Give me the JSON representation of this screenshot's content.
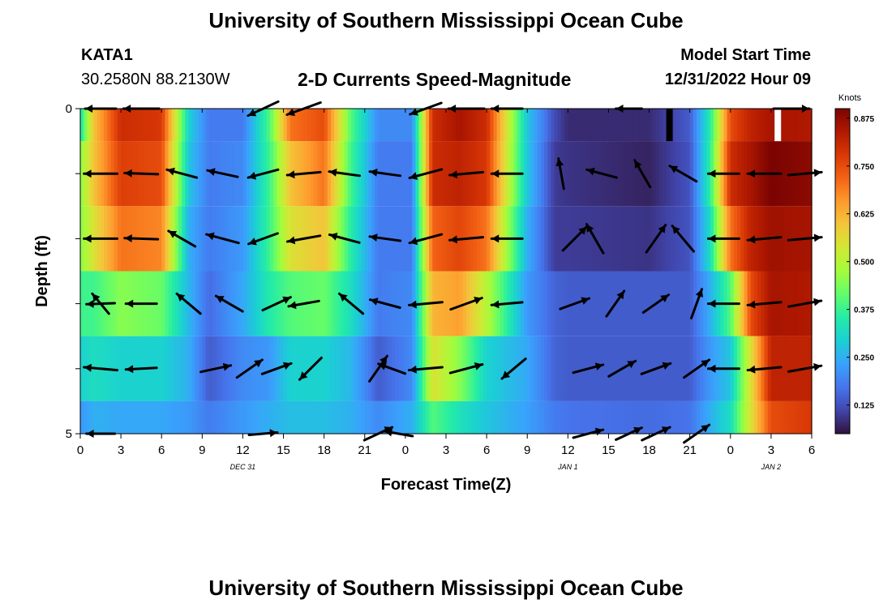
{
  "header": {
    "title": "University of Southern Mississippi Ocean Cube",
    "station_id": "KATA1",
    "station_coords": "30.2580N  88.2130W",
    "chart_subtitle": "2-D Currents Speed-Magnitude",
    "model_start_label": "Model Start Time",
    "model_start_value": "12/31/2022 Hour 09"
  },
  "footer": {
    "title_repeat": "University of Southern Mississippi Ocean Cube"
  },
  "colors": {
    "arrow": "#000000",
    "colormap": [
      "#30123b",
      "#4145ab",
      "#4675ed",
      "#39a2fc",
      "#1bcfd4",
      "#24eca6",
      "#61fc6c",
      "#a4fc3b",
      "#d1e834",
      "#f3c63a",
      "#fe9b2d",
      "#f36315",
      "#d93806",
      "#b11901",
      "#7a0402"
    ]
  },
  "chart_data": {
    "type": "heatmap",
    "title": "2-D Currents Speed-Magnitude",
    "xlabel": "Forecast Time(Z)",
    "ylabel": "Depth (ft)",
    "y_tick_labels": [
      "0",
      "5"
    ],
    "ylim": [
      0,
      5
    ],
    "x_tick_labels": [
      "0",
      "3",
      "6",
      "9",
      "12",
      "15",
      "18",
      "21",
      "0",
      "3",
      "6",
      "9",
      "12",
      "15",
      "18",
      "21",
      "0",
      "3",
      "6"
    ],
    "date_labels": [
      {
        "label": "DEC 31",
        "at_hour": 12
      },
      {
        "label": "JAN 1",
        "at_hour": 36
      },
      {
        "label": "JAN 2",
        "at_hour": 51
      }
    ],
    "x_hours_range": [
      0,
      54
    ],
    "colorbar": {
      "unit_label": "Knots",
      "range": [
        0.05,
        0.9
      ],
      "ticks": [
        "0.125",
        "0.250",
        "0.375",
        "0.500",
        "0.625",
        "0.750",
        "0.875"
      ],
      "tick_values": [
        0.125,
        0.25,
        0.375,
        0.5,
        0.625,
        0.75,
        0.875
      ]
    },
    "depth_levels": [
      0,
      1,
      2,
      3,
      4,
      5
    ],
    "speed_keyframes": [
      [
        0,
        [
          0.33,
          0.45,
          0.45,
          0.38,
          0.3,
          0.22
        ]
      ],
      [
        1,
        [
          0.6,
          0.6,
          0.55,
          0.38,
          0.32,
          0.25
        ]
      ],
      [
        3,
        [
          0.8,
          0.77,
          0.7,
          0.45,
          0.3,
          0.24
        ]
      ],
      [
        6,
        [
          0.78,
          0.75,
          0.68,
          0.42,
          0.3,
          0.24
        ]
      ],
      [
        8,
        [
          0.3,
          0.28,
          0.25,
          0.26,
          0.25,
          0.22
        ]
      ],
      [
        9.5,
        [
          0.18,
          0.18,
          0.18,
          0.16,
          0.14,
          0.18
        ]
      ],
      [
        12,
        [
          0.18,
          0.2,
          0.22,
          0.24,
          0.2,
          0.22
        ]
      ],
      [
        14,
        [
          0.4,
          0.38,
          0.38,
          0.35,
          0.22,
          0.25
        ]
      ],
      [
        15.5,
        [
          0.7,
          0.6,
          0.55,
          0.4,
          0.3,
          0.27
        ]
      ],
      [
        18,
        [
          0.75,
          0.7,
          0.6,
          0.42,
          0.3,
          0.27
        ]
      ],
      [
        20,
        [
          0.4,
          0.38,
          0.35,
          0.32,
          0.26,
          0.25
        ]
      ],
      [
        22,
        [
          0.2,
          0.18,
          0.18,
          0.18,
          0.14,
          0.2
        ]
      ],
      [
        24.5,
        [
          0.2,
          0.18,
          0.18,
          0.2,
          0.2,
          0.25
        ]
      ],
      [
        26,
        [
          0.8,
          0.8,
          0.72,
          0.62,
          0.55,
          0.4
        ]
      ],
      [
        28,
        [
          0.85,
          0.82,
          0.76,
          0.65,
          0.45,
          0.33
        ]
      ],
      [
        30,
        [
          0.8,
          0.78,
          0.7,
          0.5,
          0.3,
          0.28
        ]
      ],
      [
        33,
        [
          0.28,
          0.28,
          0.25,
          0.22,
          0.24,
          0.23
        ]
      ],
      [
        35,
        [
          0.12,
          0.1,
          0.1,
          0.15,
          0.15,
          0.18
        ]
      ],
      [
        36,
        [
          0.08,
          0.09,
          0.1,
          0.14,
          0.14,
          0.17
        ]
      ],
      [
        42,
        [
          0.08,
          0.07,
          0.09,
          0.14,
          0.14,
          0.16
        ]
      ],
      [
        45,
        [
          0.14,
          0.13,
          0.13,
          0.14,
          0.14,
          0.17
        ]
      ],
      [
        46.5,
        [
          0.35,
          0.36,
          0.32,
          0.25,
          0.22,
          0.25
        ]
      ],
      [
        48,
        [
          0.75,
          0.8,
          0.7,
          0.4,
          0.28,
          0.32
        ]
      ],
      [
        49.5,
        [
          0.82,
          0.85,
          0.82,
          0.75,
          0.55,
          0.55
        ]
      ],
      [
        51,
        [
          0.85,
          0.9,
          0.86,
          0.85,
          0.82,
          0.75
        ]
      ],
      [
        54,
        [
          0.84,
          0.88,
          0.85,
          0.84,
          0.82,
          0.78
        ]
      ]
    ],
    "missing_cells": [
      {
        "hour": 43.5,
        "depth": 0
      },
      {
        "hour": 51.5,
        "depth": 0
      }
    ],
    "vectors": [
      {
        "hour": 1.5,
        "depth": 0,
        "dir": 180,
        "speed": 0.6
      },
      {
        "hour": 4.5,
        "depth": 0,
        "dir": 180,
        "speed": 0.8
      },
      {
        "hour": 13.5,
        "depth": 0,
        "dir": 205,
        "speed": 0.7
      },
      {
        "hour": 16.5,
        "depth": 0,
        "dir": 200,
        "speed": 0.8
      },
      {
        "hour": 25.5,
        "depth": 0,
        "dir": 200,
        "speed": 0.7
      },
      {
        "hour": 28.5,
        "depth": 0,
        "dir": 180,
        "speed": 0.8
      },
      {
        "hour": 31.5,
        "depth": 0,
        "dir": 180,
        "speed": 0.6
      },
      {
        "hour": 40.5,
        "depth": 0,
        "dir": 180,
        "speed": 0.4
      },
      {
        "hour": 52.5,
        "depth": 0,
        "dir": 0,
        "speed": 0.8
      },
      {
        "hour": 1.5,
        "depth": 1,
        "dir": 180,
        "speed": 0.7
      },
      {
        "hour": 4.5,
        "depth": 1,
        "dir": 178,
        "speed": 0.7
      },
      {
        "hour": 7.5,
        "depth": 1,
        "dir": 165,
        "speed": 0.6
      },
      {
        "hour": 10.5,
        "depth": 1,
        "dir": 168,
        "speed": 0.6
      },
      {
        "hour": 13.5,
        "depth": 1,
        "dir": 195,
        "speed": 0.6
      },
      {
        "hour": 16.5,
        "depth": 1,
        "dir": 185,
        "speed": 0.7
      },
      {
        "hour": 19.5,
        "depth": 1,
        "dir": 172,
        "speed": 0.6
      },
      {
        "hour": 22.5,
        "depth": 1,
        "dir": 172,
        "speed": 0.6
      },
      {
        "hour": 25.5,
        "depth": 1,
        "dir": 195,
        "speed": 0.7
      },
      {
        "hour": 28.5,
        "depth": 1,
        "dir": 185,
        "speed": 0.7
      },
      {
        "hour": 31.5,
        "depth": 1,
        "dir": 180,
        "speed": 0.6
      },
      {
        "hour": 35.5,
        "depth": 1,
        "dir": 100,
        "speed": 0.6
      },
      {
        "hour": 38.5,
        "depth": 1,
        "dir": 165,
        "speed": 0.6
      },
      {
        "hour": 41.5,
        "depth": 1,
        "dir": 120,
        "speed": 0.6
      },
      {
        "hour": 44.5,
        "depth": 1,
        "dir": 150,
        "speed": 0.6
      },
      {
        "hour": 47.5,
        "depth": 1,
        "dir": 180,
        "speed": 0.6
      },
      {
        "hour": 50.5,
        "depth": 1,
        "dir": 180,
        "speed": 0.7
      },
      {
        "hour": 53.5,
        "depth": 1,
        "dir": 5,
        "speed": 0.7
      },
      {
        "hour": 1.5,
        "depth": 2,
        "dir": 180,
        "speed": 0.7
      },
      {
        "hour": 4.5,
        "depth": 2,
        "dir": 178,
        "speed": 0.7
      },
      {
        "hour": 7.5,
        "depth": 2,
        "dir": 150,
        "speed": 0.6
      },
      {
        "hour": 10.5,
        "depth": 2,
        "dir": 165,
        "speed": 0.7
      },
      {
        "hour": 13.5,
        "depth": 2,
        "dir": 200,
        "speed": 0.6
      },
      {
        "hour": 16.5,
        "depth": 2,
        "dir": 190,
        "speed": 0.7
      },
      {
        "hour": 19.5,
        "depth": 2,
        "dir": 165,
        "speed": 0.6
      },
      {
        "hour": 22.5,
        "depth": 2,
        "dir": 172,
        "speed": 0.6
      },
      {
        "hour": 25.5,
        "depth": 2,
        "dir": 195,
        "speed": 0.7
      },
      {
        "hour": 28.5,
        "depth": 2,
        "dir": 185,
        "speed": 0.7
      },
      {
        "hour": 31.5,
        "depth": 2,
        "dir": 180,
        "speed": 0.6
      },
      {
        "hour": 36.5,
        "depth": 2,
        "dir": 45,
        "speed": 0.7
      },
      {
        "hour": 38.0,
        "depth": 2,
        "dir": 120,
        "speed": 0.7
      },
      {
        "hour": 42.5,
        "depth": 2,
        "dir": 55,
        "speed": 0.7
      },
      {
        "hour": 44.5,
        "depth": 2,
        "dir": 130,
        "speed": 0.7
      },
      {
        "hour": 47.5,
        "depth": 2,
        "dir": 180,
        "speed": 0.6
      },
      {
        "hour": 50.5,
        "depth": 2,
        "dir": 185,
        "speed": 0.7
      },
      {
        "hour": 53.5,
        "depth": 2,
        "dir": 5,
        "speed": 0.7
      },
      {
        "hour": 1.5,
        "depth": 3,
        "dir": 130,
        "speed": 0.4
      },
      {
        "hour": 1.5,
        "depth": 3,
        "dir": 182,
        "speed": 0.5
      },
      {
        "hour": 4.5,
        "depth": 3,
        "dir": 180,
        "speed": 0.6
      },
      {
        "hour": 8.0,
        "depth": 3,
        "dir": 140,
        "speed": 0.6
      },
      {
        "hour": 11.0,
        "depth": 3,
        "dir": 150,
        "speed": 0.6
      },
      {
        "hour": 14.5,
        "depth": 3,
        "dir": 25,
        "speed": 0.6
      },
      {
        "hour": 16.5,
        "depth": 3,
        "dir": 190,
        "speed": 0.6
      },
      {
        "hour": 20.0,
        "depth": 3,
        "dir": 140,
        "speed": 0.6
      },
      {
        "hour": 22.5,
        "depth": 3,
        "dir": 165,
        "speed": 0.6
      },
      {
        "hour": 25.5,
        "depth": 3,
        "dir": 185,
        "speed": 0.7
      },
      {
        "hour": 28.5,
        "depth": 3,
        "dir": 20,
        "speed": 0.7
      },
      {
        "hour": 31.5,
        "depth": 3,
        "dir": 185,
        "speed": 0.6
      },
      {
        "hour": 36.5,
        "depth": 3,
        "dir": 20,
        "speed": 0.6
      },
      {
        "hour": 39.5,
        "depth": 3,
        "dir": 55,
        "speed": 0.6
      },
      {
        "hour": 42.5,
        "depth": 3,
        "dir": 35,
        "speed": 0.6
      },
      {
        "hour": 45.5,
        "depth": 3,
        "dir": 70,
        "speed": 0.6
      },
      {
        "hour": 47.5,
        "depth": 3,
        "dir": 180,
        "speed": 0.6
      },
      {
        "hour": 50.5,
        "depth": 3,
        "dir": 185,
        "speed": 0.7
      },
      {
        "hour": 53.5,
        "depth": 3,
        "dir": 10,
        "speed": 0.7
      },
      {
        "hour": 1.5,
        "depth": 4,
        "dir": 175,
        "speed": 0.7
      },
      {
        "hour": 4.5,
        "depth": 4,
        "dir": 183,
        "speed": 0.6
      },
      {
        "hour": 10.0,
        "depth": 4,
        "dir": 12,
        "speed": 0.6
      },
      {
        "hour": 12.5,
        "depth": 4,
        "dir": 35,
        "speed": 0.6
      },
      {
        "hour": 14.5,
        "depth": 4,
        "dir": 20,
        "speed": 0.6
      },
      {
        "hour": 17.0,
        "depth": 4,
        "dir": 225,
        "speed": 0.6
      },
      {
        "hour": 22.0,
        "depth": 4,
        "dir": 55,
        "speed": 0.6
      },
      {
        "hour": 23.0,
        "depth": 4,
        "dir": 160,
        "speed": 0.5
      },
      {
        "hour": 25.5,
        "depth": 4,
        "dir": 185,
        "speed": 0.7
      },
      {
        "hour": 28.5,
        "depth": 4,
        "dir": 15,
        "speed": 0.7
      },
      {
        "hour": 32.0,
        "depth": 4,
        "dir": 220,
        "speed": 0.6
      },
      {
        "hour": 37.5,
        "depth": 4,
        "dir": 15,
        "speed": 0.6
      },
      {
        "hour": 40.0,
        "depth": 4,
        "dir": 30,
        "speed": 0.6
      },
      {
        "hour": 42.5,
        "depth": 4,
        "dir": 20,
        "speed": 0.6
      },
      {
        "hour": 45.5,
        "depth": 4,
        "dir": 35,
        "speed": 0.6
      },
      {
        "hour": 47.5,
        "depth": 4,
        "dir": 180,
        "speed": 0.6
      },
      {
        "hour": 50.5,
        "depth": 4,
        "dir": 185,
        "speed": 0.7
      },
      {
        "hour": 53.5,
        "depth": 4,
        "dir": 10,
        "speed": 0.7
      },
      {
        "hour": 1.5,
        "depth": 5,
        "dir": 180,
        "speed": 0.5
      },
      {
        "hour": 13.5,
        "depth": 5,
        "dir": 5,
        "speed": 0.5
      },
      {
        "hour": 22.0,
        "depth": 5,
        "dir": 25,
        "speed": 0.6
      },
      {
        "hour": 23.5,
        "depth": 5,
        "dir": 170,
        "speed": 0.5
      },
      {
        "hour": 37.5,
        "depth": 5,
        "dir": 15,
        "speed": 0.6
      },
      {
        "hour": 40.5,
        "depth": 5,
        "dir": 25,
        "speed": 0.5
      },
      {
        "hour": 42.5,
        "depth": 5,
        "dir": 25,
        "speed": 0.6
      },
      {
        "hour": 45.5,
        "depth": 5,
        "dir": 35,
        "speed": 0.6
      }
    ]
  }
}
